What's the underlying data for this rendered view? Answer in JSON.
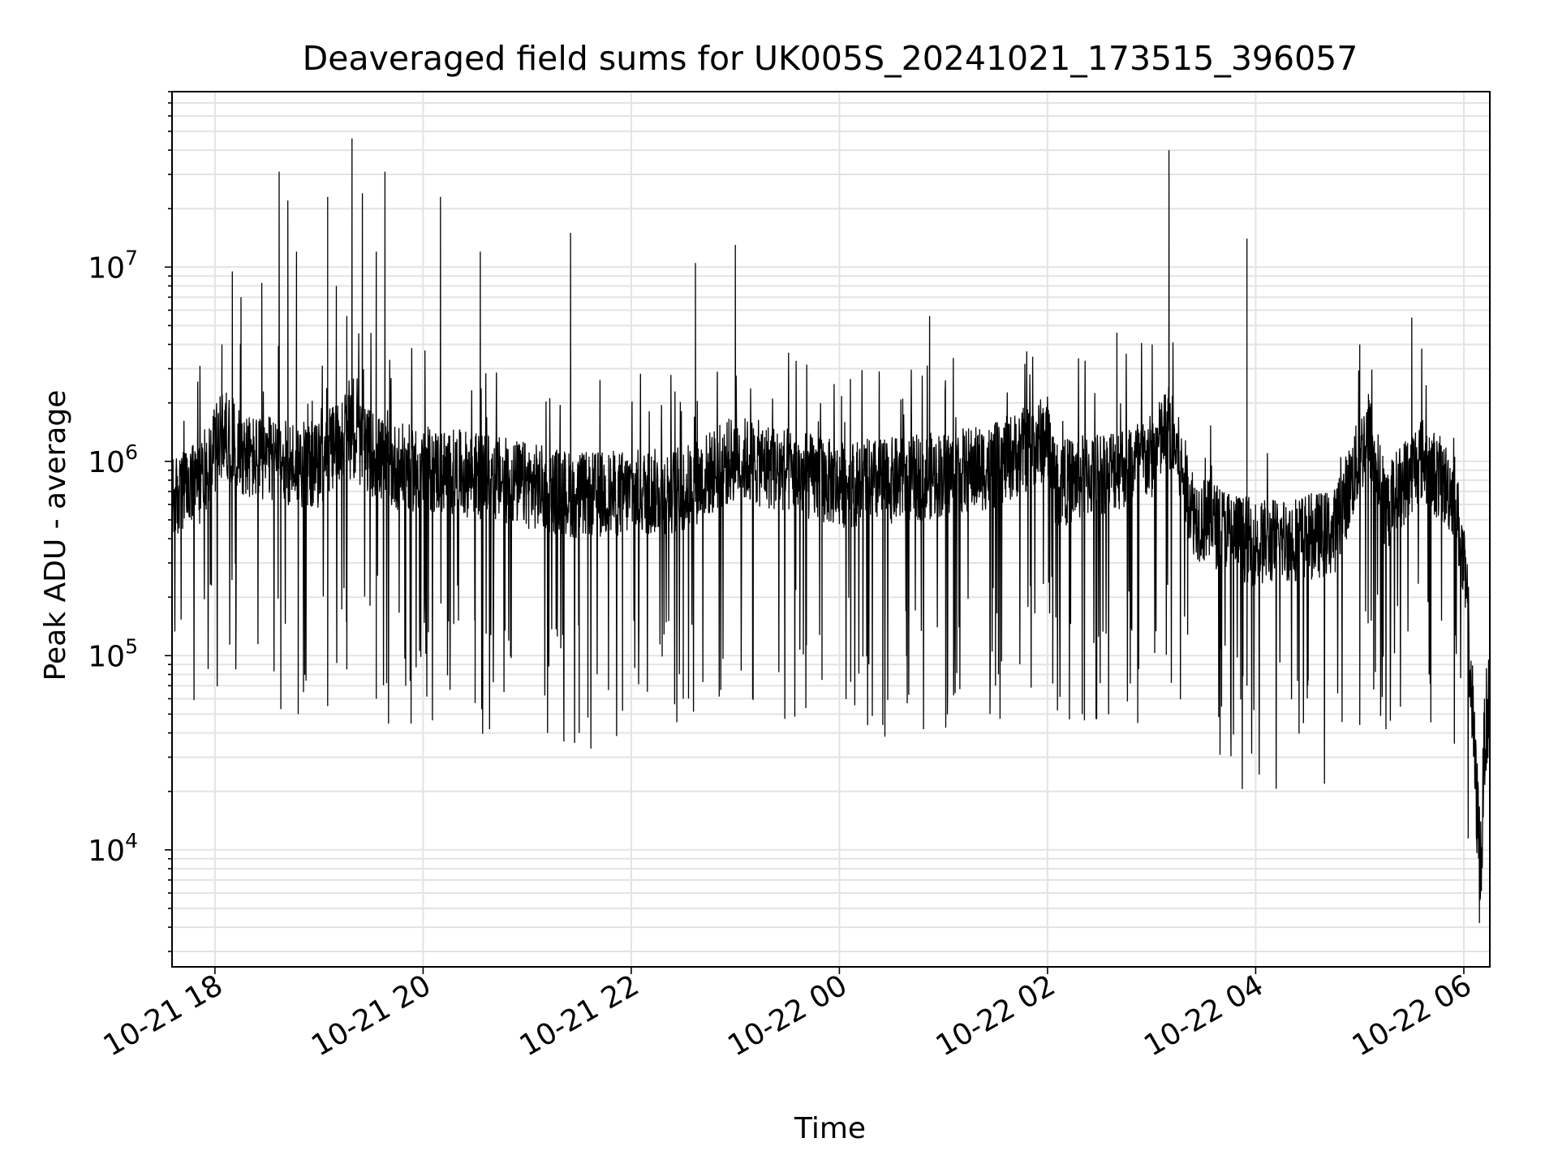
{
  "chart_data": {
    "type": "line",
    "title": "Deaveraged field sums for UK005S_20241021_173515_396057",
    "xlabel": "Time",
    "ylabel": "Peak ADU - average",
    "y_scale": "log",
    "ylim": [
      2500,
      80000000
    ],
    "xlim": [
      "2024-10-21 17:35:15",
      "2024-10-22 06:15:00"
    ],
    "grid": true,
    "x_ticks": [
      {
        "label": "10-21 18",
        "t": "2024-10-21 18:00"
      },
      {
        "label": "10-21 20",
        "t": "2024-10-21 20:00"
      },
      {
        "label": "10-21 22",
        "t": "2024-10-21 22:00"
      },
      {
        "label": "10-22 00",
        "t": "2024-10-22 00:00"
      },
      {
        "label": "10-22 02",
        "t": "2024-10-22 02:00"
      },
      {
        "label": "10-22 04",
        "t": "2024-10-22 04:00"
      },
      {
        "label": "10-22 06",
        "t": "2024-10-22 06:00"
      }
    ],
    "y_ticks": [
      {
        "base": "10",
        "exp": "4",
        "value": 10000
      },
      {
        "base": "10",
        "exp": "5",
        "value": 100000
      },
      {
        "base": "10",
        "exp": "6",
        "value": 1000000
      },
      {
        "base": "10",
        "exp": "7",
        "value": 10000000
      }
    ],
    "series": [
      {
        "color": "#000000",
        "baseline_profile": [
          [
            "2024-10-21 17:35",
            650000
          ],
          [
            "2024-10-21 17:50",
            800000
          ],
          [
            "2024-10-21 18:05",
            1500000
          ],
          [
            "2024-10-21 18:20",
            1100000
          ],
          [
            "2024-10-21 19:00",
            1000000
          ],
          [
            "2024-10-21 19:15",
            1500000
          ],
          [
            "2024-10-21 19:40",
            1000000
          ],
          [
            "2024-10-21 20:30",
            900000
          ],
          [
            "2024-10-21 21:30",
            700000
          ],
          [
            "2024-10-21 22:30",
            750000
          ],
          [
            "2024-10-21 23:00",
            1100000
          ],
          [
            "2024-10-22 00:00",
            800000
          ],
          [
            "2024-10-22 00:40",
            850000
          ],
          [
            "2024-10-22 01:30",
            1000000
          ],
          [
            "2024-10-22 02:00",
            1400000
          ],
          [
            "2024-10-22 02:05",
            800000
          ],
          [
            "2024-10-22 03:00",
            1100000
          ],
          [
            "2024-10-22 03:10",
            1600000
          ],
          [
            "2024-10-22 03:25",
            550000
          ],
          [
            "2024-10-22 04:00",
            400000
          ],
          [
            "2024-10-22 04:45",
            450000
          ],
          [
            "2024-10-22 05:05",
            1500000
          ],
          [
            "2024-10-22 05:15",
            600000
          ],
          [
            "2024-10-22 05:35",
            1100000
          ],
          [
            "2024-10-22 05:55",
            700000
          ],
          [
            "2024-10-22 06:02",
            200000
          ],
          [
            "2024-10-22 06:07",
            20000
          ],
          [
            "2024-10-22 06:10",
            8000
          ],
          [
            "2024-10-22 06:12",
            40000
          ],
          [
            "2024-10-22 06:15",
            60000
          ]
        ],
        "spikes": [
          [
            "2024-10-21 18:04",
            4000000
          ],
          [
            "2024-10-21 18:10",
            9500000
          ],
          [
            "2024-10-21 18:15",
            7000000
          ],
          [
            "2024-10-21 18:27",
            8300000
          ],
          [
            "2024-10-21 18:37",
            31000000
          ],
          [
            "2024-10-21 18:42",
            22000000
          ],
          [
            "2024-10-21 18:47",
            12000000
          ],
          [
            "2024-10-21 19:05",
            23000000
          ],
          [
            "2024-10-21 19:10",
            8000000
          ],
          [
            "2024-10-21 19:16",
            5600000
          ],
          [
            "2024-10-21 19:19",
            46000000
          ],
          [
            "2024-10-21 19:25",
            24000000
          ],
          [
            "2024-10-21 19:33",
            12000000
          ],
          [
            "2024-10-21 19:38",
            31000000
          ],
          [
            "2024-10-21 20:10",
            23000000
          ],
          [
            "2024-10-21 20:33",
            12000000
          ],
          [
            "2024-10-21 21:25",
            15000000
          ],
          [
            "2024-10-21 22:37",
            10500000
          ],
          [
            "2024-10-21 23:00",
            13000000
          ],
          [
            "2024-10-22 00:52",
            5600000
          ],
          [
            "2024-10-22 02:40",
            4600000
          ],
          [
            "2024-10-22 03:10",
            40000000
          ],
          [
            "2024-10-22 03:55",
            14000000
          ],
          [
            "2024-10-22 05:00",
            4000000
          ],
          [
            "2024-10-22 05:30",
            5500000
          ]
        ],
        "dips": [
          [
            "2024-10-21 17:58",
            230000
          ],
          [
            "2024-10-21 18:12",
            85000
          ],
          [
            "2024-10-21 18:38",
            53000
          ],
          [
            "2024-10-21 18:48",
            50000
          ],
          [
            "2024-10-21 19:05",
            55000
          ],
          [
            "2024-10-21 19:33",
            60000
          ],
          [
            "2024-10-21 19:50",
            70000
          ],
          [
            "2024-10-21 20:30",
            57000
          ],
          [
            "2024-10-21 21:30",
            40000
          ],
          [
            "2024-10-21 21:35",
            48000
          ],
          [
            "2024-10-21 21:55",
            52000
          ],
          [
            "2024-10-21 22:30",
            60000
          ],
          [
            "2024-10-21 23:10",
            60000
          ],
          [
            "2024-10-21 23:50",
            75000
          ],
          [
            "2024-10-22 00:25",
            44000
          ],
          [
            "2024-10-22 01:30",
            70000
          ],
          [
            "2024-10-22 02:20",
            50000
          ],
          [
            "2024-10-22 02:52",
            45000
          ],
          [
            "2024-10-22 03:55",
            70000
          ],
          [
            "2024-10-22 04:30",
            70000
          ],
          [
            "2024-10-22 05:00",
            44000
          ],
          [
            "2024-10-22 05:40",
            80000
          ],
          [
            "2024-10-22 06:09",
            4200
          ]
        ]
      }
    ]
  }
}
